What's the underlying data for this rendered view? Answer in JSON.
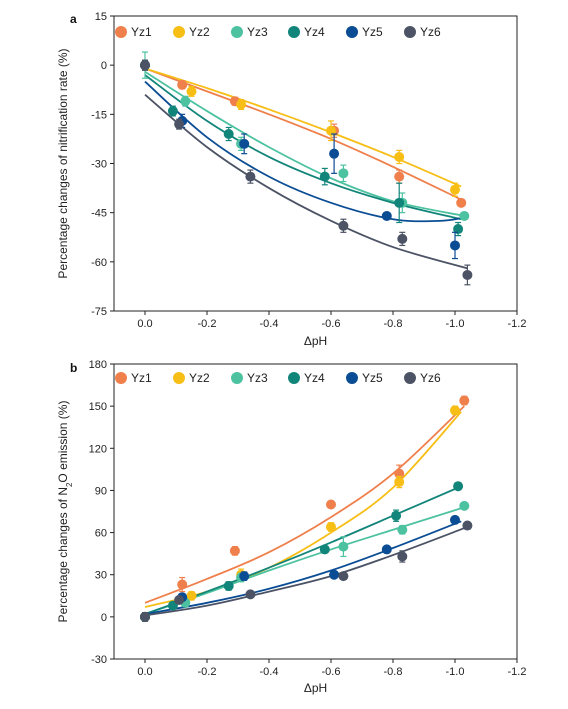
{
  "series_names": [
    "Yz1",
    "Yz2",
    "Yz3",
    "Yz4",
    "Yz5",
    "Yz6"
  ],
  "colors": [
    "#EF7F4B",
    "#F7BE16",
    "#4DC2A0",
    "#12857A",
    "#0B4D94",
    "#4C5365"
  ],
  "chart_data": [
    {
      "type": "scatter",
      "panel_label": "a",
      "title": "",
      "xlabel": "ΔpH",
      "ylabel": "Percentage changes of nitrification rate (%)",
      "xlim": [
        0.1,
        -1.2
      ],
      "ylim": [
        -75,
        15
      ],
      "x_ticks": [
        "0.0",
        "-0.2",
        "-0.4",
        "-0.6",
        "-0.8",
        "-1.0",
        "-1.2"
      ],
      "y_ticks": [
        "15",
        "0",
        "-15",
        "-30",
        "-45",
        "-60",
        "-75"
      ],
      "x_tick_values": [
        0,
        -0.2,
        -0.4,
        -0.6,
        -0.8,
        -1.0,
        -1.2
      ],
      "y_tick_values": [
        15,
        0,
        -15,
        -30,
        -45,
        -60,
        -75
      ],
      "legend_placement": "top",
      "series": [
        {
          "name": "Yz1",
          "points": [
            {
              "x": 0,
              "y": 0,
              "err": 1.5
            },
            {
              "x": -0.12,
              "y": -6,
              "err": 1.2
            },
            {
              "x": -0.29,
              "y": -11,
              "err": 1.2
            },
            {
              "x": -0.61,
              "y": -20,
              "err": 2
            },
            {
              "x": -0.82,
              "y": -34,
              "err": 2
            },
            {
              "x": -1.02,
              "y": -42,
              "err": 1
            }
          ],
          "fit": [
            [
              0,
              -1
            ],
            [
              -0.2,
              -8
            ],
            [
              -0.4,
              -15
            ],
            [
              -0.6,
              -22.5
            ],
            [
              -0.8,
              -31
            ],
            [
              -1.02,
              -41
            ]
          ]
        },
        {
          "name": "Yz2",
          "points": [
            {
              "x": 0,
              "y": 0,
              "err": 1.5
            },
            {
              "x": -0.15,
              "y": -8,
              "err": 1.5
            },
            {
              "x": -0.31,
              "y": -12,
              "err": 1.5
            },
            {
              "x": -0.6,
              "y": -20,
              "err": 3
            },
            {
              "x": -0.82,
              "y": -28,
              "err": 2
            },
            {
              "x": -1.0,
              "y": -38,
              "err": 2
            }
          ],
          "fit": [
            [
              0,
              -1
            ],
            [
              -0.2,
              -7
            ],
            [
              -0.4,
              -13.5
            ],
            [
              -0.6,
              -20.5
            ],
            [
              -0.8,
              -28
            ],
            [
              -1.02,
              -37
            ]
          ]
        },
        {
          "name": "Yz3",
          "points": [
            {
              "x": 0,
              "y": 0,
              "err": 4
            },
            {
              "x": -0.13,
              "y": -11,
              "err": 1.5
            },
            {
              "x": -0.31,
              "y": -24,
              "err": 2
            },
            {
              "x": -0.64,
              "y": -33,
              "err": 2.5
            },
            {
              "x": -0.83,
              "y": -42,
              "err": 3
            },
            {
              "x": -1.03,
              "y": -46,
              "err": 1
            }
          ],
          "fit": [
            [
              0,
              -2
            ],
            [
              -0.2,
              -14
            ],
            [
              -0.4,
              -25
            ],
            [
              -0.6,
              -34.5
            ],
            [
              -0.8,
              -41.5
            ],
            [
              -1.03,
              -46
            ]
          ]
        },
        {
          "name": "Yz4",
          "points": [
            {
              "x": 0,
              "y": 0,
              "err": 1.5
            },
            {
              "x": -0.09,
              "y": -14,
              "err": 1.5
            },
            {
              "x": -0.27,
              "y": -21,
              "err": 2
            },
            {
              "x": -0.58,
              "y": -34,
              "err": 2.5
            },
            {
              "x": -0.82,
              "y": -42,
              "err": 6
            },
            {
              "x": -1.01,
              "y": -50,
              "err": 2
            }
          ],
          "fit": [
            [
              0,
              -3
            ],
            [
              -0.2,
              -17
            ],
            [
              -0.4,
              -28
            ],
            [
              -0.6,
              -36
            ],
            [
              -0.8,
              -42
            ],
            [
              -1.02,
              -47
            ]
          ]
        },
        {
          "name": "Yz5",
          "points": [
            {
              "x": 0,
              "y": 0,
              "err": 1.5
            },
            {
              "x": -0.12,
              "y": -17,
              "err": 2
            },
            {
              "x": -0.32,
              "y": -24,
              "err": 3
            },
            {
              "x": -0.61,
              "y": -27,
              "err": 6
            },
            {
              "x": -0.78,
              "y": -46,
              "err": 1
            },
            {
              "x": -1.0,
              "y": -55,
              "err": 4
            }
          ],
          "fit": [
            [
              0,
              -5
            ],
            [
              -0.2,
              -22
            ],
            [
              -0.4,
              -34
            ],
            [
              -0.6,
              -42
            ],
            [
              -0.8,
              -47
            ],
            [
              -0.95,
              -47.5
            ],
            [
              -1.03,
              -46.5
            ]
          ]
        },
        {
          "name": "Yz6",
          "points": [
            {
              "x": 0,
              "y": 0,
              "err": 1.5
            },
            {
              "x": -0.11,
              "y": -18,
              "err": 1.5
            },
            {
              "x": -0.34,
              "y": -34,
              "err": 2
            },
            {
              "x": -0.64,
              "y": -49,
              "err": 2
            },
            {
              "x": -0.83,
              "y": -53,
              "err": 2
            },
            {
              "x": -1.04,
              "y": -64,
              "err": 3
            }
          ],
          "fit": [
            [
              0,
              -9
            ],
            [
              -0.2,
              -25
            ],
            [
              -0.4,
              -37.5
            ],
            [
              -0.6,
              -47.5
            ],
            [
              -0.8,
              -55.5
            ],
            [
              -1.04,
              -62
            ]
          ]
        }
      ]
    },
    {
      "type": "scatter",
      "panel_label": "b",
      "title": "",
      "xlabel": "ΔpH",
      "ylabel_prefix": "Percentage changes of N",
      "ylabel_sub": "2",
      "ylabel_suffix": "O emission (%)",
      "xlim": [
        0.1,
        -1.2
      ],
      "ylim": [
        -30,
        180
      ],
      "x_ticks": [
        "0.0",
        "-0.2",
        "-0.4",
        "-0.6",
        "-0.8",
        "-1.0",
        "-1.2"
      ],
      "y_ticks": [
        "180",
        "150",
        "120",
        "90",
        "60",
        "30",
        "0",
        "-30"
      ],
      "x_tick_values": [
        0,
        -0.2,
        -0.4,
        -0.6,
        -0.8,
        -1.0,
        -1.2
      ],
      "y_tick_values": [
        180,
        150,
        120,
        90,
        60,
        30,
        0,
        -30
      ],
      "legend_placement": "top",
      "series": [
        {
          "name": "Yz1",
          "points": [
            {
              "x": 0,
              "y": 0,
              "err": 3
            },
            {
              "x": -0.12,
              "y": 23,
              "err": 5
            },
            {
              "x": -0.29,
              "y": 47,
              "err": 3
            },
            {
              "x": -0.6,
              "y": 80,
              "err": 2
            },
            {
              "x": -0.82,
              "y": 102,
              "err": 6
            },
            {
              "x": -1.03,
              "y": 154,
              "err": 3
            }
          ],
          "fit": [
            [
              0,
              10
            ],
            [
              -0.2,
              27
            ],
            [
              -0.4,
              46
            ],
            [
              -0.6,
              71
            ],
            [
              -0.8,
              102
            ],
            [
              -1.03,
              150
            ]
          ]
        },
        {
          "name": "Yz2",
          "points": [
            {
              "x": 0,
              "y": 0,
              "err": 3
            },
            {
              "x": -0.15,
              "y": 15,
              "err": 3
            },
            {
              "x": -0.31,
              "y": 30,
              "err": 4
            },
            {
              "x": -0.6,
              "y": 64,
              "err": 3
            },
            {
              "x": -0.82,
              "y": 96,
              "err": 4
            },
            {
              "x": -1.0,
              "y": 147,
              "err": 3
            }
          ],
          "fit": [
            [
              0,
              7
            ],
            [
              -0.2,
              18
            ],
            [
              -0.4,
              35
            ],
            [
              -0.6,
              60
            ],
            [
              -0.8,
              92
            ],
            [
              -1.02,
              146
            ]
          ]
        },
        {
          "name": "Yz3",
          "points": [
            {
              "x": 0,
              "y": 0,
              "err": 3
            },
            {
              "x": -0.13,
              "y": 10,
              "err": 2
            },
            {
              "x": -0.31,
              "y": 28,
              "err": 3
            },
            {
              "x": -0.64,
              "y": 50,
              "err": 7
            },
            {
              "x": -0.83,
              "y": 62,
              "err": 3
            },
            {
              "x": -1.03,
              "y": 79,
              "err": 2
            }
          ],
          "fit": [
            [
              0,
              2
            ],
            [
              -0.2,
              17
            ],
            [
              -0.4,
              33
            ],
            [
              -0.6,
              48
            ],
            [
              -0.8,
              62
            ],
            [
              -1.03,
              78
            ]
          ]
        },
        {
          "name": "Yz4",
          "points": [
            {
              "x": 0,
              "y": 0,
              "err": 3
            },
            {
              "x": -0.09,
              "y": 8,
              "err": 2
            },
            {
              "x": -0.27,
              "y": 22,
              "err": 3
            },
            {
              "x": -0.58,
              "y": 48,
              "err": 2
            },
            {
              "x": -0.81,
              "y": 72,
              "err": 4
            },
            {
              "x": -1.01,
              "y": 93,
              "err": 2
            }
          ],
          "fit": [
            [
              0,
              2
            ],
            [
              -0.2,
              18
            ],
            [
              -0.4,
              35
            ],
            [
              -0.6,
              53
            ],
            [
              -0.8,
              72
            ],
            [
              -1.01,
              92
            ]
          ]
        },
        {
          "name": "Yz5",
          "points": [
            {
              "x": 0,
              "y": 0,
              "err": 3
            },
            {
              "x": -0.12,
              "y": 14,
              "err": 2
            },
            {
              "x": -0.32,
              "y": 29,
              "err": 3
            },
            {
              "x": -0.61,
              "y": 30,
              "err": 2
            },
            {
              "x": -0.78,
              "y": 48,
              "err": 2
            },
            {
              "x": -1.0,
              "y": 69,
              "err": 2
            }
          ],
          "fit": [
            [
              0,
              2
            ],
            [
              -0.2,
              10
            ],
            [
              -0.4,
              20
            ],
            [
              -0.6,
              33
            ],
            [
              -0.8,
              49
            ],
            [
              -1.02,
              68
            ]
          ]
        },
        {
          "name": "Yz6",
          "points": [
            {
              "x": 0,
              "y": 0,
              "err": 3
            },
            {
              "x": -0.11,
              "y": 12,
              "err": 2
            },
            {
              "x": -0.34,
              "y": 16,
              "err": 2
            },
            {
              "x": -0.64,
              "y": 29,
              "err": 2
            },
            {
              "x": -0.83,
              "y": 43,
              "err": 4
            },
            {
              "x": -1.04,
              "y": 65,
              "err": 2
            }
          ],
          "fit": [
            [
              0,
              1
            ],
            [
              -0.2,
              8
            ],
            [
              -0.4,
              18
            ],
            [
              -0.6,
              29
            ],
            [
              -0.8,
              44
            ],
            [
              -1.04,
              64
            ]
          ]
        }
      ]
    }
  ]
}
